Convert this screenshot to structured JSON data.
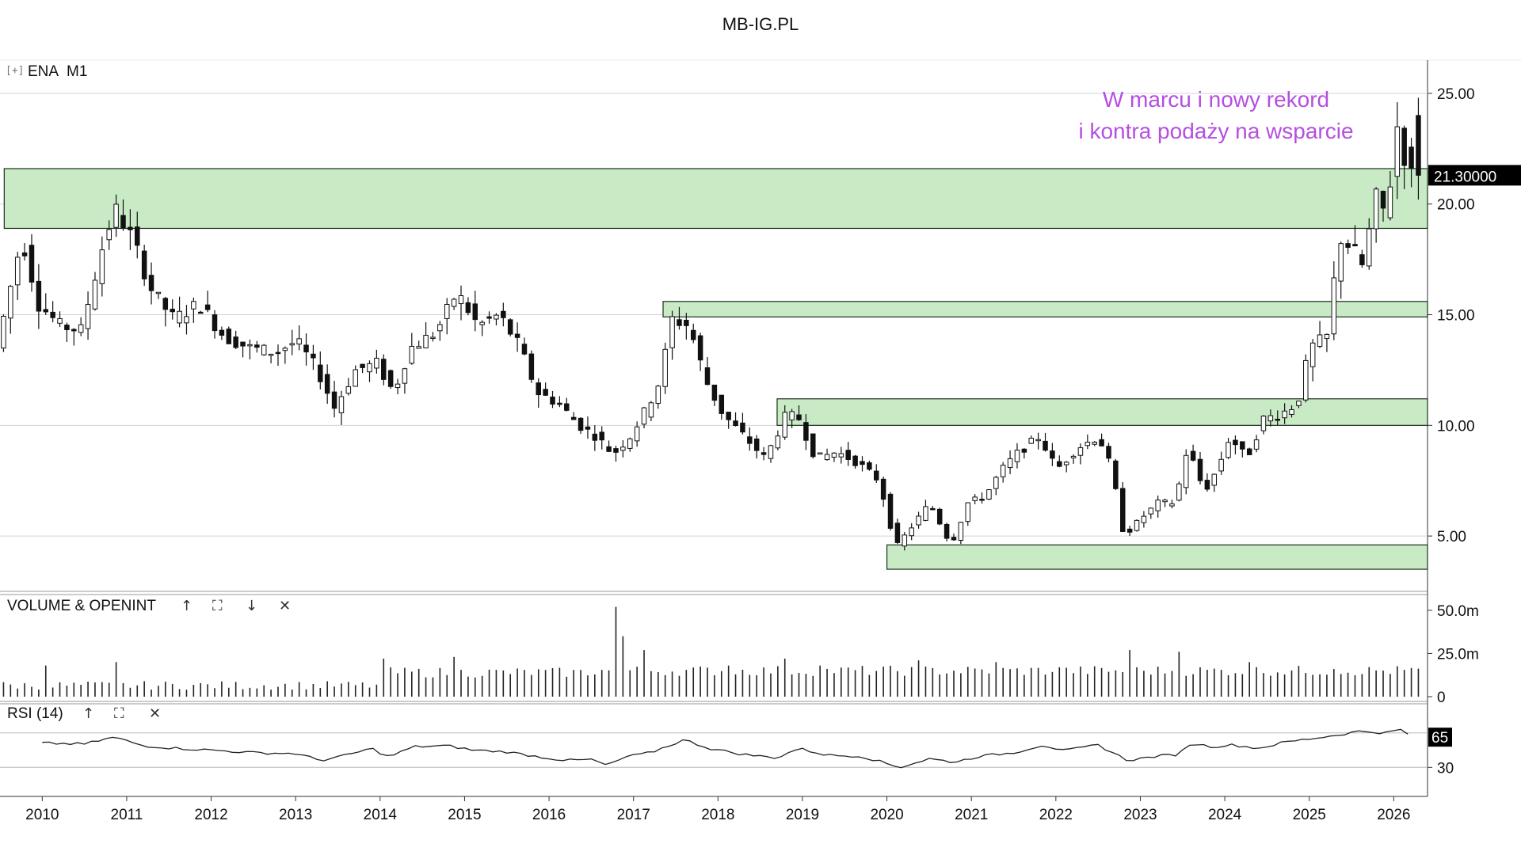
{
  "page": {
    "title": "MB-IG.PL"
  },
  "main_panel": {
    "expand_glyph": "[+]",
    "symbol": "ENA",
    "timeframe": "M1",
    "price_badge": "21.30000",
    "annotation_lines": [
      "W marcu i nowy rekord",
      "i kontra podaży na wsparcie"
    ],
    "colors": {
      "annotation": "#b44fe0",
      "zone_fill": "#c8ebc6",
      "zone_stroke": "#1e2e1e",
      "candle_up": "#ffffff",
      "candle_down": "#111111",
      "badge_bg": "#000000",
      "badge_text": "#ffffff"
    }
  },
  "volume_panel": {
    "title": "VOLUME & OPENINT",
    "buttons": [
      "↑",
      "⛶",
      "↓",
      "✕"
    ]
  },
  "rsi_panel": {
    "title": "RSI (14)",
    "buttons": [
      "↑",
      "⛶",
      "✕"
    ],
    "value_badge": "65"
  },
  "chart_data": {
    "type": "candlestick",
    "symbol": "ENA",
    "timeframe": "M1",
    "price_axis": {
      "ticks": [
        5,
        10,
        15,
        20,
        25
      ],
      "tick_labels": [
        "5.00",
        "10.00",
        "15.00",
        "20.00",
        "25.00"
      ],
      "range": [
        2.5,
        26.5
      ]
    },
    "x_axis": {
      "range": [
        2009.5,
        2026.4
      ],
      "tick_labels": [
        "2010",
        "2011",
        "2012",
        "2013",
        "2014",
        "2015",
        "2016",
        "2017",
        "2018",
        "2019",
        "2020",
        "2021",
        "2022",
        "2023",
        "2024",
        "2025",
        "2026"
      ]
    },
    "zones": [
      {
        "low": 18.9,
        "high": 21.6,
        "start": 2009.55
      },
      {
        "low": 14.9,
        "high": 15.6,
        "start": 2017.35
      },
      {
        "low": 10.0,
        "high": 11.2,
        "start": 2018.7
      },
      {
        "low": 3.5,
        "high": 4.6,
        "start": 2020.0
      }
    ],
    "path_points": [
      [
        2009.5,
        13.5
      ],
      [
        2009.8,
        18.5
      ],
      [
        2010.0,
        15.5
      ],
      [
        2010.25,
        14.5
      ],
      [
        2010.5,
        14.3
      ],
      [
        2010.75,
        18.0
      ],
      [
        2010.9,
        19.8
      ],
      [
        2011.1,
        18.5
      ],
      [
        2011.35,
        16.0
      ],
      [
        2011.6,
        14.8
      ],
      [
        2011.9,
        15.5
      ],
      [
        2012.2,
        14.0
      ],
      [
        2012.5,
        13.5
      ],
      [
        2012.8,
        13.3
      ],
      [
        2013.05,
        13.8
      ],
      [
        2013.3,
        12.5
      ],
      [
        2013.5,
        10.8
      ],
      [
        2013.75,
        12.5
      ],
      [
        2014.0,
        12.8
      ],
      [
        2014.2,
        11.5
      ],
      [
        2014.4,
        13.5
      ],
      [
        2014.7,
        14.2
      ],
      [
        2014.95,
        16.0
      ],
      [
        2015.2,
        14.5
      ],
      [
        2015.45,
        15.0
      ],
      [
        2015.7,
        13.5
      ],
      [
        2015.9,
        11.5
      ],
      [
        2016.15,
        11.0
      ],
      [
        2016.4,
        10.0
      ],
      [
        2016.6,
        9.5
      ],
      [
        2016.8,
        8.7
      ],
      [
        2017.0,
        9.5
      ],
      [
        2017.2,
        10.8
      ],
      [
        2017.35,
        12.0
      ],
      [
        2017.5,
        14.8
      ],
      [
        2017.7,
        14.5
      ],
      [
        2017.9,
        12.0
      ],
      [
        2018.1,
        10.5
      ],
      [
        2018.35,
        9.5
      ],
      [
        2018.6,
        8.5
      ],
      [
        2018.85,
        10.5
      ],
      [
        2019.0,
        10.3
      ],
      [
        2019.2,
        8.5
      ],
      [
        2019.45,
        8.8
      ],
      [
        2019.7,
        8.3
      ],
      [
        2019.95,
        7.5
      ],
      [
        2020.15,
        4.5
      ],
      [
        2020.35,
        5.5
      ],
      [
        2020.55,
        6.5
      ],
      [
        2020.8,
        4.6
      ],
      [
        2021.0,
        6.5
      ],
      [
        2021.2,
        6.8
      ],
      [
        2021.4,
        8.0
      ],
      [
        2021.6,
        8.8
      ],
      [
        2021.85,
        9.5
      ],
      [
        2022.05,
        8.0
      ],
      [
        2022.3,
        9.0
      ],
      [
        2022.55,
        9.5
      ],
      [
        2022.7,
        8.0
      ],
      [
        2022.85,
        5.0
      ],
      [
        2023.05,
        5.8
      ],
      [
        2023.25,
        6.5
      ],
      [
        2023.45,
        6.5
      ],
      [
        2023.6,
        9.0
      ],
      [
        2023.8,
        7.0
      ],
      [
        2023.95,
        8.0
      ],
      [
        2024.1,
        9.5
      ],
      [
        2024.3,
        8.5
      ],
      [
        2024.5,
        10.3
      ],
      [
        2024.7,
        10.5
      ],
      [
        2024.9,
        11.0
      ],
      [
        2025.05,
        13.5
      ],
      [
        2025.25,
        14.0
      ],
      [
        2025.4,
        18.5
      ],
      [
        2025.55,
        18.0
      ],
      [
        2025.7,
        17.0
      ],
      [
        2025.8,
        20.5
      ],
      [
        2025.95,
        19.5
      ],
      [
        2026.1,
        24.0
      ],
      [
        2026.2,
        21.3
      ]
    ],
    "volume_axis": {
      "tick_labels": [
        "0",
        "25.0m",
        "50.0m"
      ],
      "range": [
        0,
        55
      ]
    },
    "volume_spikes": [
      [
        2010.0,
        18
      ],
      [
        2010.85,
        20
      ],
      [
        2014.0,
        22
      ],
      [
        2014.9,
        23
      ],
      [
        2016.75,
        52
      ],
      [
        2016.85,
        35
      ],
      [
        2017.15,
        27
      ],
      [
        2018.1,
        18
      ],
      [
        2018.75,
        22
      ],
      [
        2019.2,
        18
      ],
      [
        2020.4,
        21
      ],
      [
        2021.3,
        20
      ],
      [
        2022.05,
        17
      ],
      [
        2022.85,
        27
      ],
      [
        2023.45,
        26
      ],
      [
        2024.3,
        20
      ],
      [
        2025.3,
        16
      ]
    ],
    "rsi_axis": {
      "range": [
        0,
        100
      ],
      "levels": [
        30,
        70
      ],
      "tick_labels": [
        "30"
      ]
    },
    "rsi_points": [
      [
        2010.0,
        58
      ],
      [
        2010.5,
        57
      ],
      [
        2010.85,
        65
      ],
      [
        2011.2,
        55
      ],
      [
        2011.6,
        52
      ],
      [
        2012.0,
        50
      ],
      [
        2012.5,
        47
      ],
      [
        2013.0,
        46
      ],
      [
        2013.3,
        38
      ],
      [
        2013.6,
        44
      ],
      [
        2013.9,
        52
      ],
      [
        2014.1,
        42
      ],
      [
        2014.4,
        54
      ],
      [
        2014.8,
        55
      ],
      [
        2015.1,
        50
      ],
      [
        2015.5,
        48
      ],
      [
        2015.9,
        42
      ],
      [
        2016.2,
        38
      ],
      [
        2016.5,
        39
      ],
      [
        2016.7,
        32
      ],
      [
        2016.9,
        42
      ],
      [
        2017.2,
        47
      ],
      [
        2017.6,
        62
      ],
      [
        2017.9,
        52
      ],
      [
        2018.3,
        45
      ],
      [
        2018.7,
        41
      ],
      [
        2018.95,
        52
      ],
      [
        2019.3,
        44
      ],
      [
        2019.7,
        43
      ],
      [
        2020.15,
        30
      ],
      [
        2020.5,
        40
      ],
      [
        2020.8,
        36
      ],
      [
        2021.1,
        43
      ],
      [
        2021.5,
        47
      ],
      [
        2021.85,
        56
      ],
      [
        2022.1,
        49
      ],
      [
        2022.5,
        56
      ],
      [
        2022.85,
        38
      ],
      [
        2023.2,
        43
      ],
      [
        2023.45,
        45
      ],
      [
        2023.6,
        58
      ],
      [
        2023.85,
        54
      ],
      [
        2024.1,
        56
      ],
      [
        2024.4,
        52
      ],
      [
        2024.7,
        59
      ],
      [
        2025.0,
        63
      ],
      [
        2025.3,
        67
      ],
      [
        2025.6,
        72
      ],
      [
        2025.9,
        70
      ],
      [
        2026.1,
        74
      ],
      [
        2026.2,
        65
      ]
    ],
    "rsi_current": 65
  }
}
